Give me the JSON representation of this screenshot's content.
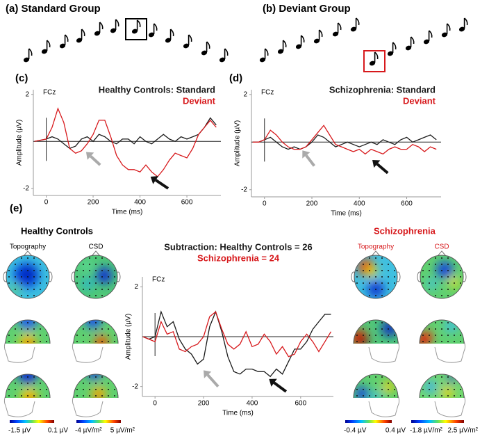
{
  "panels": {
    "a": {
      "label": "(a) Standard Group"
    },
    "b": {
      "label": "(b) Deviant Group"
    },
    "e": {
      "label": "(e)",
      "hc_title": "Healthy Controls",
      "sz_title": "Schizophrenia",
      "hc_topo": "Topography",
      "hc_csd": "CSD",
      "sz_topo": "Topography",
      "sz_csd": "CSD",
      "colorbars": [
        {
          "min": "-1.5 µV",
          "max": "0.1 µV"
        },
        {
          "min": "-4 µV/m²",
          "max": "5 µV/m²"
        },
        {
          "min": "-0.4 µV",
          "max": "0.4 µV"
        },
        {
          "min": "-1.8 µV/m²",
          "max": "2.5 µV/m²"
        }
      ]
    }
  },
  "chart_data": [
    {
      "type": "line",
      "label": "(c)",
      "annotation": "FCz",
      "xlabel": "Time (ms)",
      "ylabel": "Amplitude (µV)",
      "x": [
        -50,
        -25,
        0,
        25,
        50,
        75,
        100,
        125,
        150,
        175,
        200,
        225,
        250,
        275,
        300,
        325,
        350,
        375,
        400,
        425,
        450,
        475,
        500,
        525,
        550,
        575,
        600,
        625,
        650,
        675,
        700,
        725
      ],
      "xlim": [
        -55,
        745
      ],
      "ylim": [
        -2.3,
        2.2
      ],
      "xticks": [
        0,
        200,
        400,
        600
      ],
      "yticks": [
        -2,
        2
      ],
      "series": [
        {
          "name": "Healthy Controls: Standard",
          "color": "#1a1a1a",
          "values": [
            0,
            0.05,
            0.1,
            0.2,
            0.1,
            -0.1,
            -0.3,
            -0.2,
            0.1,
            0.2,
            0,
            0.3,
            0.2,
            0,
            -0.1,
            0.1,
            0.1,
            -0.1,
            0.2,
            0,
            -0.1,
            0.1,
            0.3,
            0.1,
            0,
            0.2,
            0.1,
            0.2,
            0.3,
            0.6,
            1.0,
            0.7
          ]
        },
        {
          "name": "Deviant",
          "color": "#d7191c",
          "values": [
            0,
            0.05,
            0.1,
            0.6,
            1.4,
            0.8,
            -0.3,
            -0.5,
            -0.4,
            -0.1,
            0.3,
            0.9,
            0.9,
            0.2,
            -0.6,
            -1.0,
            -1.2,
            -1.2,
            -1.3,
            -1.0,
            -1.3,
            -1.5,
            -1.2,
            -0.8,
            -0.5,
            -0.6,
            -0.7,
            -0.3,
            0.3,
            0.6,
            0.9,
            0.6
          ]
        }
      ]
    },
    {
      "type": "line",
      "label": "(d)",
      "annotation": "FCz",
      "xlabel": "Time (ms)",
      "ylabel": "Amplitude (µV)",
      "x": [
        -50,
        -25,
        0,
        25,
        50,
        75,
        100,
        125,
        150,
        175,
        200,
        225,
        250,
        275,
        300,
        325,
        350,
        375,
        400,
        425,
        450,
        475,
        500,
        525,
        550,
        575,
        600,
        625,
        650,
        675,
        700,
        725
      ],
      "xlim": [
        -55,
        745
      ],
      "ylim": [
        -2.3,
        2.2
      ],
      "xticks": [
        0,
        200,
        400,
        600
      ],
      "yticks": [
        -2,
        2
      ],
      "series": [
        {
          "name": "Schizophrenia: Standard",
          "color": "#1a1a1a",
          "values": [
            0,
            0,
            0.1,
            0.2,
            0,
            -0.2,
            -0.3,
            -0.2,
            -0.3,
            -0.2,
            0,
            0.3,
            0.2,
            0,
            -0.2,
            -0.1,
            0,
            -0.1,
            -0.2,
            -0.1,
            0,
            -0.1,
            0.1,
            0,
            -0.1,
            0.1,
            0.2,
            0,
            0.1,
            0.2,
            0.3,
            0.1
          ]
        },
        {
          "name": "Deviant",
          "color": "#d7191c",
          "values": [
            0,
            0,
            0.1,
            0.5,
            0.3,
            0,
            -0.2,
            -0.3,
            -0.3,
            -0.2,
            0.1,
            0.4,
            0.7,
            0.3,
            -0.1,
            -0.2,
            -0.3,
            -0.4,
            -0.3,
            -0.5,
            -0.3,
            -0.4,
            -0.5,
            -0.3,
            -0.2,
            -0.3,
            -0.3,
            -0.1,
            -0.2,
            -0.4,
            -0.2,
            -0.3
          ]
        }
      ]
    },
    {
      "type": "line",
      "annotation": "FCz",
      "xlabel": "Time (ms)",
      "ylabel": "Amplitude (µV)",
      "x": [
        -50,
        -25,
        0,
        25,
        50,
        75,
        100,
        125,
        150,
        175,
        200,
        225,
        250,
        275,
        300,
        325,
        350,
        375,
        400,
        425,
        450,
        475,
        500,
        525,
        550,
        575,
        600,
        625,
        650,
        675,
        700,
        725
      ],
      "xlim": [
        -52,
        735
      ],
      "ylim": [
        -2.4,
        2.4
      ],
      "xticks": [
        0,
        200,
        400,
        600
      ],
      "yticks": [
        -2,
        2
      ],
      "series": [
        {
          "name": "Subtraction: Healthy Controls = 26",
          "color": "#1a1a1a",
          "values": [
            0,
            -0.1,
            0,
            1.0,
            0.4,
            0.6,
            -0.1,
            -0.5,
            -0.7,
            -1.1,
            -0.9,
            0.4,
            1.0,
            0.2,
            -0.8,
            -1.4,
            -1.5,
            -1.3,
            -1.3,
            -1.4,
            -1.4,
            -1.6,
            -1.3,
            -1.5,
            -1.0,
            -0.5,
            -0.5,
            -0.2,
            0.3,
            0.6,
            0.9,
            0.9
          ]
        },
        {
          "name": "Schizophrenia = 24",
          "color": "#d7191c",
          "values": [
            0,
            -0.1,
            -0.2,
            0.6,
            0.1,
            0.2,
            -0.5,
            -0.6,
            -0.4,
            -0.3,
            0,
            0.8,
            1.0,
            0.3,
            -0.3,
            -0.5,
            -0.3,
            0.2,
            -0.4,
            -0.3,
            0.1,
            -0.2,
            -0.7,
            -0.4,
            -0.8,
            -0.7,
            -0.2,
            0.1,
            -0.2,
            -0.6,
            -0.2,
            0.2
          ]
        }
      ]
    }
  ]
}
